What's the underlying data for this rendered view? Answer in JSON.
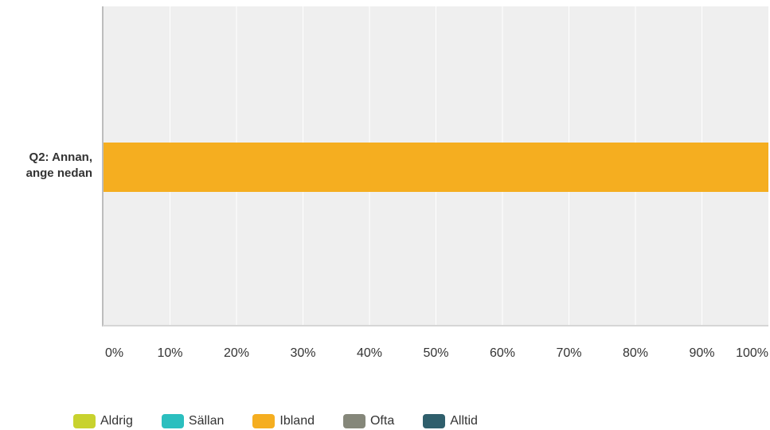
{
  "chart_data": {
    "type": "bar",
    "orientation": "horizontal",
    "stacked": true,
    "categories": [
      "Q2: Annan, ange nedan"
    ],
    "category_label_lines": [
      [
        "Q2: Annan,",
        "ange nedan"
      ]
    ],
    "series": [
      {
        "name": "Aldrig",
        "color": "#c8d22e",
        "values": [
          0
        ]
      },
      {
        "name": "Sällan",
        "color": "#2bbfbf",
        "values": [
          0
        ]
      },
      {
        "name": "Ibland",
        "color": "#f5ae20",
        "values": [
          100
        ]
      },
      {
        "name": "Ofta",
        "color": "#85877a",
        "values": [
          0
        ]
      },
      {
        "name": "Alltid",
        "color": "#2f5f6c",
        "values": [
          0
        ]
      }
    ],
    "x_ticks": [
      "0%",
      "10%",
      "20%",
      "30%",
      "40%",
      "50%",
      "60%",
      "70%",
      "80%",
      "90%",
      "100%"
    ],
    "xlim": [
      0,
      100
    ],
    "grid": true,
    "legend_position": "bottom",
    "plot_background": "#efefef",
    "grid_color": "#ffffff"
  }
}
